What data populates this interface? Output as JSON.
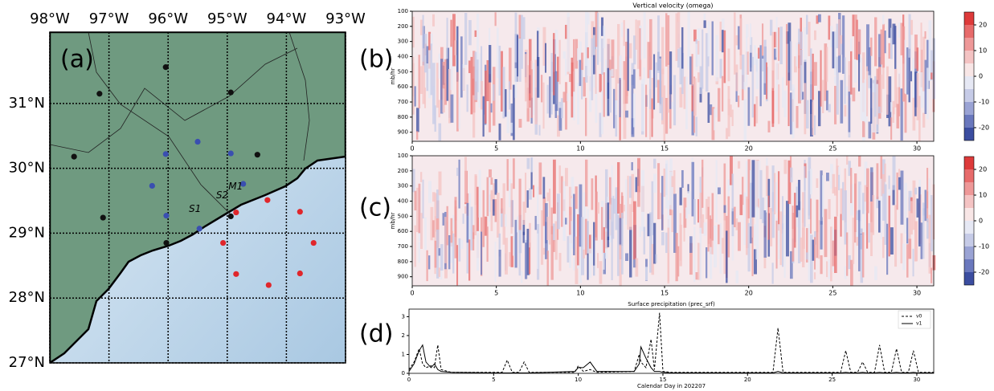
{
  "chart_data": [
    {
      "type": "map",
      "label": "(a)",
      "xlim": [
        -98,
        -93
      ],
      "ylim": [
        27,
        32.1
      ],
      "xticks": [
        {
          "value": -98,
          "label": "98°W"
        },
        {
          "value": -97,
          "label": "97°W"
        },
        {
          "value": -96,
          "label": "96°W"
        },
        {
          "value": -95,
          "label": "95°W"
        },
        {
          "value": -94,
          "label": "94°W"
        },
        {
          "value": -93,
          "label": "93°W"
        }
      ],
      "yticks": [
        {
          "value": 27,
          "label": "27°N"
        },
        {
          "value": 28,
          "label": "28°N"
        },
        {
          "value": 29,
          "label": "29°N"
        },
        {
          "value": 30,
          "label": "30°N"
        },
        {
          "value": 31,
          "label": "31°N"
        }
      ],
      "grid": true,
      "series": [
        {
          "color": "#111111",
          "x": [
            -96.04,
            -97.16,
            -94.94,
            -97.59,
            -94.49,
            -97.1,
            -94.94,
            -96.03
          ],
          "values": [
            31.56,
            31.15,
            31.17,
            30.18,
            30.21,
            29.24,
            29.26,
            28.85
          ]
        },
        {
          "color": "#3a4fb0",
          "x": [
            -96.04,
            -95.5,
            -94.94,
            -96.27,
            -94.73,
            -96.03,
            -95.47
          ],
          "values": [
            30.22,
            30.41,
            30.23,
            29.73,
            29.76,
            29.27,
            29.07
          ]
        },
        {
          "color": "#e0262b",
          "x": [
            -94.85,
            -94.32,
            -93.77,
            -95.07,
            -93.54,
            -94.85,
            -93.77,
            -94.3
          ],
          "values": [
            29.32,
            29.51,
            29.33,
            28.85,
            28.85,
            28.37,
            28.38,
            28.2
          ]
        }
      ],
      "annotations": [
        {
          "text": "S1",
          "x": -95.65,
          "y": 29.37,
          "color": "#3a4fb0"
        },
        {
          "text": "S2",
          "x": -95.19,
          "y": 29.58,
          "color": "#e0262b"
        },
        {
          "text": "M1",
          "x": -94.98,
          "y": 29.72,
          "color": "#111111"
        }
      ]
    },
    {
      "type": "heatmap",
      "label": "(b)",
      "title": "Vertical velocity (omega)",
      "ylabel": "mb/hr",
      "xlim": [
        0,
        31
      ],
      "xticks": [
        0,
        5,
        10,
        15,
        20,
        25,
        30
      ],
      "ylim": [
        960,
        100
      ],
      "yticks": [
        100,
        200,
        300,
        400,
        500,
        600,
        700,
        800,
        900
      ],
      "colorbar": {
        "lim": [
          -25,
          25
        ],
        "ticks": [
          20,
          10,
          0,
          -10,
          -20
        ],
        "colors": [
          "#3b4da0",
          "#6a78bd",
          "#9aa3d4",
          "#c6cbe7",
          "#e6e8f4",
          "#f8e6e6",
          "#f4c3c3",
          "#ee9898",
          "#e76b6b",
          "#dd3a3a"
        ]
      }
    },
    {
      "type": "heatmap",
      "label": "(c)",
      "ylabel": "mb/hr",
      "xlim": [
        0,
        31
      ],
      "xticks": [
        0,
        5,
        10,
        15,
        20,
        25,
        30
      ],
      "ylim": [
        960,
        100
      ],
      "yticks": [
        100,
        200,
        300,
        400,
        500,
        600,
        700,
        800,
        900
      ],
      "colorbar": {
        "lim": [
          -25,
          25
        ],
        "ticks": [
          20,
          10,
          0,
          -10,
          -20
        ],
        "colors": [
          "#3b4da0",
          "#6a78bd",
          "#9aa3d4",
          "#c6cbe7",
          "#e6e8f4",
          "#f8e6e6",
          "#f4c3c3",
          "#ee9898",
          "#e76b6b",
          "#dd3a3a"
        ]
      }
    },
    {
      "type": "line",
      "label": "(d)",
      "title": "Surface precipitation (prec_srf)",
      "xlabel": "Calendar Day in 202207",
      "xlim": [
        0,
        31
      ],
      "xticks": [
        0,
        5,
        10,
        15,
        20,
        25,
        30
      ],
      "ylim": [
        0,
        3.4
      ],
      "yticks": [
        0,
        1,
        2,
        3
      ],
      "legend": "upper right",
      "x": [
        0,
        0.3,
        0.6,
        0.8,
        1.0,
        1.3,
        1.5,
        1.7,
        1.9,
        2.5,
        5.5,
        5.8,
        6.1,
        6.5,
        6.8,
        7.1,
        9.8,
        10.0,
        10.3,
        10.7,
        11.1,
        13.3,
        13.6,
        13.7,
        14.0,
        14.3,
        14.5,
        14.8,
        15.0,
        15.5,
        21.5,
        21.8,
        22.1,
        25.5,
        25.8,
        26.1,
        26.5,
        26.8,
        27.1,
        27.5,
        27.8,
        28.1,
        28.5,
        28.8,
        29.1,
        29.5,
        29.8,
        30.1,
        31
      ],
      "series": [
        {
          "name": "v0",
          "color": "#000000",
          "dash": "dashed",
          "values": [
            0.2,
            0.6,
            1.3,
            0.5,
            0.3,
            0.4,
            0.3,
            1.5,
            0.2,
            0.05,
            0.05,
            0.7,
            0.05,
            0.05,
            0.6,
            0.05,
            0.05,
            0.4,
            0.1,
            0.2,
            0.05,
            0.1,
            1.0,
            0.6,
            0.3,
            1.8,
            0.2,
            3.2,
            0.1,
            0.05,
            0.05,
            2.4,
            0.05,
            0.05,
            1.2,
            0.05,
            0.05,
            0.6,
            0.05,
            0.05,
            1.5,
            0.05,
            0.05,
            1.3,
            0.05,
            0.05,
            1.2,
            0.05,
            0.05
          ]
        },
        {
          "name": "v1",
          "color": "#000000",
          "dash": "solid",
          "values": [
            0.1,
            0.5,
            1.2,
            1.5,
            0.6,
            0.3,
            0.5,
            0.2,
            0.1,
            0.05,
            0.02,
            0.02,
            0.02,
            0.02,
            0.02,
            0.02,
            0.1,
            0.3,
            0.3,
            0.6,
            0.1,
            0.1,
            0.5,
            1.4,
            0.8,
            0.3,
            0.1,
            0.1,
            0.05,
            0.02,
            0.02,
            0.1,
            0.02,
            0.02,
            0.05,
            0.02,
            0.02,
            0.05,
            0.02,
            0.02,
            0.05,
            0.02,
            0.02,
            0.05,
            0.02,
            0.02,
            0.05,
            0.02,
            0.02
          ]
        }
      ]
    }
  ]
}
